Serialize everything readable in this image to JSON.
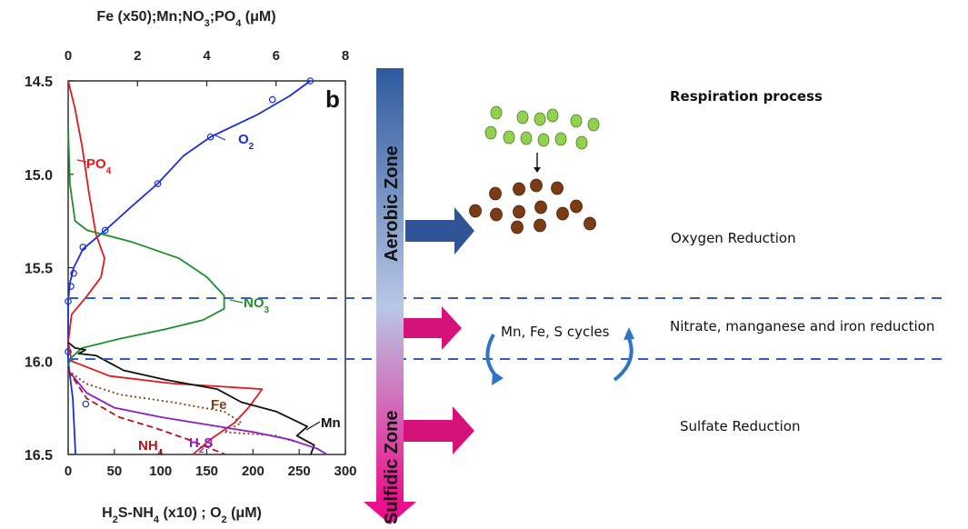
{
  "chart_data": {
    "type": "line",
    "panel_letter": "b",
    "top_axis": {
      "label_html_parts": [
        "Fe (x50);Mn;NO",
        "3",
        ";PO",
        "4",
        " (μM)"
      ],
      "ticks": [
        0,
        2,
        4,
        6,
        8
      ],
      "range": [
        0,
        8
      ]
    },
    "bottom_axis": {
      "label_parts": [
        "H",
        "2",
        "S-NH",
        "4",
        " (x10) ; O",
        "2",
        " (μM)"
      ],
      "ticks": [
        0,
        50,
        100,
        150,
        200,
        250,
        300
      ],
      "range": [
        0,
        300
      ]
    },
    "y_axis": {
      "ticks": [
        "14.5",
        "15.0",
        "15.5",
        "16.0",
        "16.5"
      ],
      "range": [
        14.5,
        16.5
      ],
      "inverted": true
    },
    "series": [
      {
        "name": "O2",
        "label_main": "O",
        "label_sub": "2",
        "axis": "bottom",
        "color": "#1a2ed6",
        "markers": true,
        "points": [
          [
            262,
            14.5
          ],
          [
            240,
            14.58
          ],
          [
            205,
            14.68
          ],
          [
            154,
            14.8
          ],
          [
            125,
            14.9
          ],
          [
            97,
            15.05
          ],
          [
            67,
            15.18
          ],
          [
            40,
            15.3
          ],
          [
            16,
            15.4
          ],
          [
            6,
            15.5
          ],
          [
            2,
            15.58
          ],
          [
            0,
            15.68
          ],
          [
            0,
            16.0
          ],
          [
            5,
            16.2
          ],
          [
            8,
            16.5
          ]
        ],
        "marker_points": [
          [
            262,
            14.5
          ],
          [
            221,
            14.6
          ],
          [
            154,
            14.8
          ],
          [
            97,
            15.05
          ],
          [
            40,
            15.3
          ],
          [
            16,
            15.39
          ],
          [
            6,
            15.53
          ],
          [
            3,
            15.6
          ],
          [
            0,
            15.68
          ],
          [
            0,
            15.95
          ],
          [
            19,
            16.23
          ]
        ]
      },
      {
        "name": "PO4",
        "label_main": "PO",
        "label_sub": "4",
        "axis": "top",
        "color": "#e0191e",
        "points": [
          [
            0,
            14.5
          ],
          [
            0.2,
            14.65
          ],
          [
            0.4,
            14.85
          ],
          [
            0.6,
            15.1
          ],
          [
            0.8,
            15.32
          ],
          [
            1.05,
            15.45
          ],
          [
            0.95,
            15.55
          ],
          [
            0.55,
            15.65
          ],
          [
            0.1,
            15.75
          ],
          [
            0,
            15.9
          ],
          [
            0.1,
            16.0
          ],
          [
            1.2,
            16.08
          ],
          [
            3.0,
            16.12
          ],
          [
            5.6,
            16.15
          ],
          [
            5.2,
            16.25
          ],
          [
            4.8,
            16.33
          ],
          [
            4.1,
            16.42
          ],
          [
            3.6,
            16.5
          ]
        ]
      },
      {
        "name": "NO3",
        "label_main": "NO",
        "label_sub": "3",
        "axis": "top",
        "color": "#1d8f2a",
        "points": [
          [
            0,
            14.75
          ],
          [
            0.05,
            15.05
          ],
          [
            0.2,
            15.25
          ],
          [
            0.55,
            15.3
          ],
          [
            1.8,
            15.36
          ],
          [
            3.2,
            15.45
          ],
          [
            4.0,
            15.55
          ],
          [
            4.5,
            15.65
          ],
          [
            4.5,
            15.72
          ],
          [
            3.9,
            15.78
          ],
          [
            2.8,
            15.83
          ],
          [
            1.5,
            15.88
          ],
          [
            0.4,
            15.93
          ],
          [
            0.1,
            15.98
          ],
          [
            0,
            16.02
          ]
        ]
      },
      {
        "name": "Mn",
        "label_main": "Mn",
        "label_sub": "",
        "axis": "top",
        "color": "#111111",
        "points": [
          [
            0,
            15.9
          ],
          [
            0.2,
            15.93
          ],
          [
            0.5,
            15.94
          ],
          [
            0.3,
            15.96
          ],
          [
            0.8,
            15.97
          ],
          [
            1.6,
            16.05
          ],
          [
            2.8,
            16.1
          ],
          [
            4.3,
            16.15
          ],
          [
            5.0,
            16.22
          ],
          [
            6.0,
            16.27
          ],
          [
            6.9,
            16.35
          ],
          [
            6.6,
            16.4
          ],
          [
            7.1,
            16.45
          ],
          [
            7.0,
            16.5
          ]
        ]
      },
      {
        "name": "Fe",
        "label_main": "Fe",
        "label_sub": "",
        "axis": "top",
        "color": "#8b3a0f",
        "dash": "2,3",
        "points": [
          [
            0,
            16.05
          ],
          [
            0.5,
            16.12
          ],
          [
            1.5,
            16.18
          ],
          [
            3.0,
            16.22
          ],
          [
            4.5,
            16.27
          ],
          [
            5.0,
            16.33
          ],
          [
            4.5,
            16.38
          ],
          [
            6.0,
            16.4
          ],
          [
            6.5,
            16.43
          ]
        ]
      },
      {
        "name": "H2S",
        "label_main": "H",
        "label_sub": "2",
        "label_tail": "S",
        "axis": "bottom",
        "color": "#8b1fbf",
        "points": [
          [
            0,
            16.05
          ],
          [
            20,
            16.17
          ],
          [
            50,
            16.25
          ],
          [
            100,
            16.3
          ],
          [
            150,
            16.34
          ],
          [
            200,
            16.38
          ],
          [
            240,
            16.42
          ],
          [
            270,
            16.47
          ],
          [
            280,
            16.5
          ]
        ]
      },
      {
        "name": "NH4",
        "label_main": "NH",
        "label_sub": "4",
        "axis": "bottom",
        "color": "#b3121a",
        "dash": "7,4",
        "points": [
          [
            0,
            16.05
          ],
          [
            20,
            16.2
          ],
          [
            55,
            16.3
          ],
          [
            95,
            16.36
          ],
          [
            130,
            16.42
          ],
          [
            155,
            16.47
          ],
          [
            170,
            16.5
          ]
        ]
      }
    ]
  },
  "zones": {
    "aerobic_label": "Aerobic Zone",
    "sulfidic_label": "Sulfidic Zone"
  },
  "processes": {
    "respiration": "Respiration process",
    "oxygen_reduction": "Oxygen Reduction",
    "nitrate_reduction": "Nitrate, manganese and iron reduction",
    "cycles": "Mn, Fe, S cycles",
    "sulfate_reduction": "Sulfate Reduction"
  },
  "colors": {
    "gradient_top": "#2d5a9e",
    "gradient_mid": "#b9c7e6",
    "gradient_bottom": "#ec0e8c",
    "oxygen_arrow": "#2f5597",
    "reduction_arrow": "#d6127a",
    "cycle_arrow": "#2e75c7",
    "dashed_line": "#2f5fc4",
    "green_cell": "#92d050",
    "brown_cell": "#7b3b13"
  }
}
